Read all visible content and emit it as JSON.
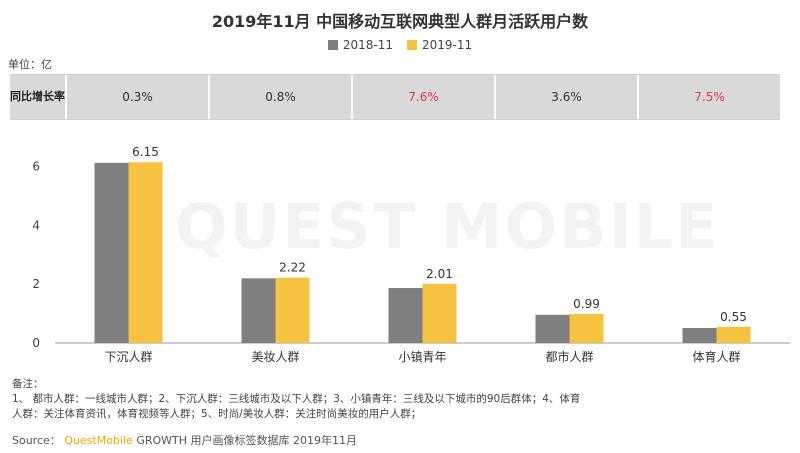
{
  "title": "2019年11月 中国移动互联网典型人群月活跃用户数",
  "unit": "单位：亿",
  "watermark": "QUEST MOBILE",
  "growth": {
    "label_line1": "同比",
    "label_line2": "增长率",
    "values": [
      "0.3%",
      "0.8%",
      "7.6%",
      "3.6%",
      "7.5%"
    ],
    "highlight": [
      false,
      false,
      true,
      false,
      true
    ]
  },
  "chart_data": {
    "type": "bar",
    "title": "2019年11月 中国移动互联网典型人群月活跃用户数",
    "ylabel": "单位：亿",
    "ylim": [
      0,
      6.6
    ],
    "yticks": [
      0,
      2,
      4,
      6
    ],
    "categories": [
      "下沉人群",
      "美妆人群",
      "小镇青年",
      "都市人群",
      "体育人群"
    ],
    "series": [
      {
        "name": "2018-11",
        "color": "#7f7f7f",
        "values": [
          6.13,
          2.2,
          1.87,
          0.96,
          0.51
        ]
      },
      {
        "name": "2019-11",
        "color": "#f5c242",
        "values": [
          6.15,
          2.22,
          2.01,
          0.99,
          0.55
        ]
      }
    ],
    "data_labels_series": 1,
    "legend_position": "top-center",
    "grid": false
  },
  "notes": {
    "heading": "备注：",
    "line1": "1、 都市人群：一线城市人群；2、下沉人群：三线城市及以下人群；3、小镇青年：三线及以下城市的90后群体；4、体育",
    "line2": "人群：关注体育资讯，体育视频等人群；5、时尚/美妆人群：关注时尚美妆的用户人群；"
  },
  "source": {
    "prefix": "Source：",
    "brand": "QuestMobile",
    "rest": "GROWTH 用户画像标签数据库  2019年11月"
  }
}
